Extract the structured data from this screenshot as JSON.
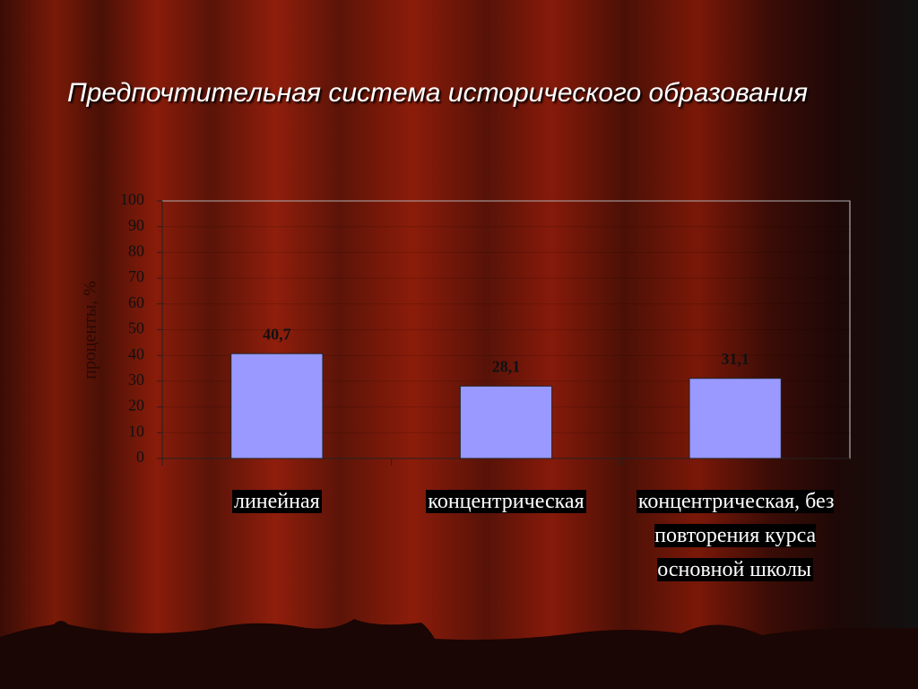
{
  "chart_data": {
    "type": "bar",
    "title": "Предпочтительная система исторического образования",
    "y_label": "проценты, %",
    "categories": [
      "линейная",
      "концентрическая",
      "концентрическая, без повторения курса основной школы"
    ],
    "values": [
      40.7,
      28.1,
      31.1
    ],
    "value_labels": [
      "40,7",
      "28,1",
      "31,1"
    ],
    "color": "#9999ff",
    "ylim": [
      0,
      100
    ],
    "yticks": [
      0,
      10,
      20,
      30,
      40,
      50,
      60,
      70,
      80,
      90,
      100
    ],
    "grid": true
  }
}
